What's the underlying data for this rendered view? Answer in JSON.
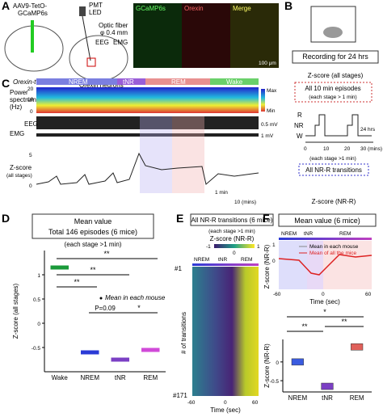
{
  "figure": {
    "A": {
      "letter": "A",
      "aav1": "AAV9-TetO-",
      "aav2": "GCaMP6s",
      "mouse": "Orexin-tTA",
      "pmt": "PMT",
      "led": "LED",
      "fiber": "Optic fiber",
      "diam": "φ 0.4 mm",
      "eeg": "EEG",
      "emg": "EMG",
      "neurons": "Orexin neurons",
      "img1": "GCaMP6s",
      "img2": "Orexin",
      "img3": "Merge",
      "scale": "100 μm"
    },
    "B": {
      "letter": "B",
      "rec": "Recording for 24 hrs",
      "zall": "Z-score (all stages)",
      "ep": "All 10 min episodes",
      "ep2": "(each stage > 1 min)",
      "r": "R",
      "nr": "NR",
      "w": "W",
      "t0": "0",
      "t10": "10",
      "t20": "20",
      "t30": "30 (mins)",
      "hrs": "24 hrs",
      "tr2": "(each stage >1 min)",
      "tr": "All NR-R transitions",
      "znr": "Z-score (NR-R)"
    },
    "C": {
      "letter": "C",
      "s1": "NREM",
      "s2": "tNR",
      "s3": "REM",
      "s4": "Wake",
      "ps1": "Power",
      "ps2": "spectrum",
      "ps3": "(Hz)",
      "p20": "20",
      "p10": "10",
      "p0": "0",
      "max": "Max",
      "min": "Min",
      "mv5": "0.5 mV",
      "mv1": "1 mV",
      "eeg": "EEG",
      "emg": "EMG",
      "z1": "Z-score",
      "z2": "(all stages)",
      "z5": "5",
      "z0": "0",
      "min1": "1 min",
      "mins": "10 (mins)"
    },
    "D": {
      "letter": "D",
      "t1": "Mean value",
      "t2": "Total 146 episodes (6 mice)",
      "t3": "(each stage >1 min)",
      "s1": "**",
      "s2": "**",
      "s3": "**",
      "p": "P=0.09",
      "s4": "*",
      "leg": "Mean in each mouse"
    },
    "E": {
      "letter": "E",
      "t1": "All NR-R transitions (6 mice)",
      "t2": "(each stage >1 min)",
      "cb": "Z-score (NR-R)",
      "cm": "-1",
      "c0": "0",
      "c1": "1",
      "n": "NREM",
      "t": "tNR",
      "r": "REM",
      "first": "#1",
      "last": "#171",
      "ylab": "# of transitions",
      "xm": "-60",
      "x0": "0",
      "xp": "60",
      "xlab": "Time (sec)"
    },
    "F": {
      "letter": "F",
      "t1": "Mean value (6 mice)",
      "n": "NREM",
      "t": "tNR",
      "r": "REM",
      "l1": "Mean in each mouse",
      "l2": "Mean of all the mice",
      "ylab": "Z-score (NR-R)",
      "y1": "1",
      "y0": "0",
      "xm": "-60",
      "x0": "0",
      "xp": "60",
      "xlab": "Time (sec)",
      "s1": "*",
      "s2": "**",
      "s3": "**"
    }
  },
  "chart_data": [
    {
      "type": "dot",
      "y_label": "Z-score (all stages)",
      "categories": [
        "Wake",
        "NREM",
        "tNR",
        "REM"
      ],
      "values": [
        1.15,
        -0.6,
        -0.75,
        -0.55
      ],
      "colors": [
        "#1a9a3a",
        "#2b3bd6",
        "#7b3fc4",
        "#d04ad8"
      ],
      "ylim": [
        -1,
        1.5
      ],
      "yticks": [
        -0.5,
        0,
        0.5,
        1
      ]
    },
    {
      "type": "box",
      "y_label": "Z-score (NR-R)",
      "categories": [
        "NREM",
        "tNR",
        "REM"
      ],
      "values": [
        0,
        -0.65,
        0.4
      ],
      "colors": [
        "#3a5be0",
        "#7b3fc4",
        "#e0605a"
      ],
      "ylim": [
        -0.8,
        0.6
      ],
      "yticks": [
        -0.5,
        0
      ]
    }
  ]
}
